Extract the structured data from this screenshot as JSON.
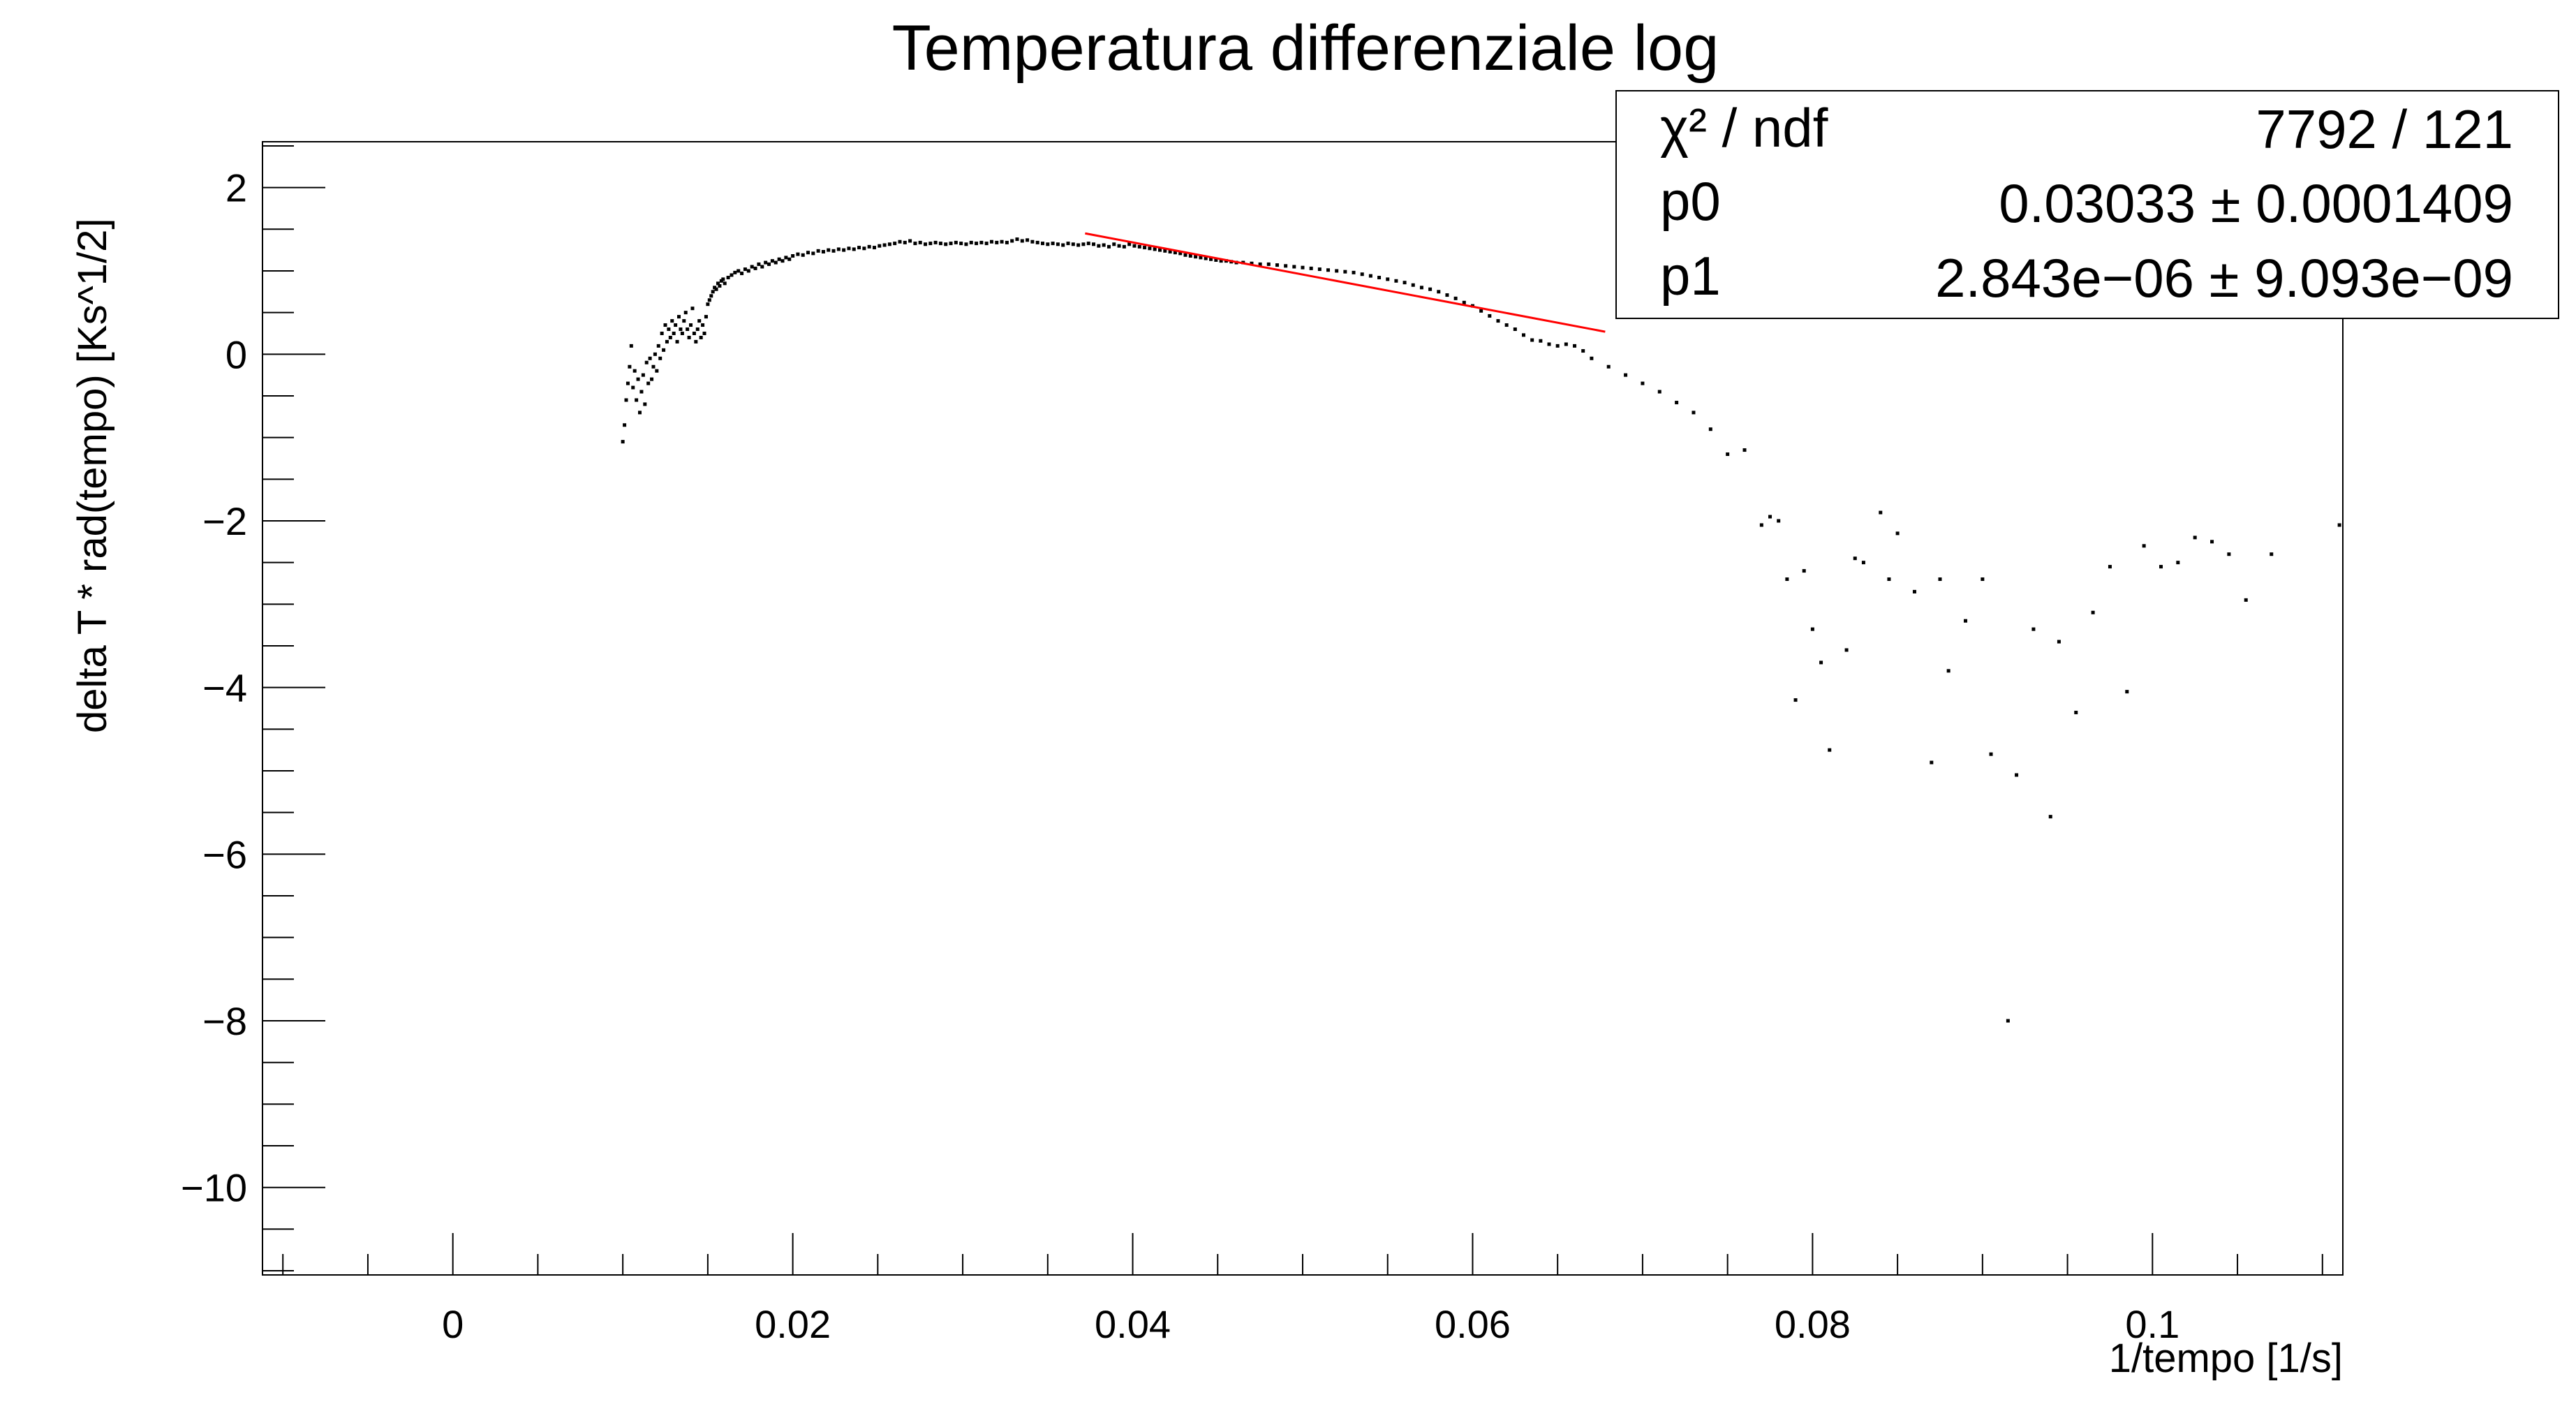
{
  "chart_data": {
    "type": "scatter",
    "title": "Temperatura differenziale log",
    "xlabel": "1/tempo [1/s]",
    "ylabel": "delta T * rad(tempo) [Ks^1/2]",
    "xlim": [
      -0.0112,
      0.1112
    ],
    "ylim": [
      -11.05,
      2.55
    ],
    "x_ticks": [
      0,
      0.02,
      0.04,
      0.06,
      0.08,
      0.1
    ],
    "x_tick_labels": [
      "0",
      "0.02",
      "0.04",
      "0.06",
      "0.08",
      "0.1"
    ],
    "y_ticks": [
      2,
      0,
      -2,
      -4,
      -6,
      -8,
      -10
    ],
    "y_tick_labels": [
      "2",
      "0",
      "−2",
      "−4",
      "−6",
      "−8",
      "−10"
    ],
    "grid": false,
    "series": [
      {
        "points": [
          [
            0.01,
            -1.05
          ],
          [
            0.0101,
            -0.85
          ],
          [
            0.0102,
            -0.55
          ],
          [
            0.0103,
            -0.35
          ],
          [
            0.0104,
            -0.15
          ],
          [
            0.0105,
            0.1
          ],
          [
            0.0106,
            -0.4
          ],
          [
            0.0107,
            -0.2
          ],
          [
            0.0108,
            -0.55
          ],
          [
            0.0109,
            -0.3
          ],
          [
            0.011,
            -0.7
          ],
          [
            0.0111,
            -0.45
          ],
          [
            0.0112,
            -0.25
          ],
          [
            0.0113,
            -0.6
          ],
          [
            0.0114,
            -0.1
          ],
          [
            0.0115,
            -0.35
          ],
          [
            0.0116,
            -0.05
          ],
          [
            0.0117,
            -0.3
          ],
          [
            0.0118,
            -0.15
          ],
          [
            0.0119,
            0.0
          ],
          [
            0.012,
            -0.2
          ],
          [
            0.0121,
            0.1
          ],
          [
            0.0122,
            -0.05
          ],
          [
            0.0123,
            0.25
          ],
          [
            0.0124,
            0.05
          ],
          [
            0.0125,
            0.35
          ],
          [
            0.0126,
            0.15
          ],
          [
            0.0127,
            0.3
          ],
          [
            0.0128,
            0.2
          ],
          [
            0.0129,
            0.4
          ],
          [
            0.013,
            0.25
          ],
          [
            0.0131,
            0.35
          ],
          [
            0.0132,
            0.15
          ],
          [
            0.0133,
            0.45
          ],
          [
            0.0134,
            0.3
          ],
          [
            0.0135,
            0.25
          ],
          [
            0.0136,
            0.4
          ],
          [
            0.0137,
            0.5
          ],
          [
            0.0138,
            0.3
          ],
          [
            0.0139,
            0.2
          ],
          [
            0.014,
            0.35
          ],
          [
            0.0141,
            0.55
          ],
          [
            0.0142,
            0.25
          ],
          [
            0.0143,
            0.15
          ],
          [
            0.0144,
            0.3
          ],
          [
            0.0145,
            0.4
          ],
          [
            0.0146,
            0.2
          ],
          [
            0.0147,
            0.35
          ],
          [
            0.0148,
            0.25
          ],
          [
            0.0149,
            0.45
          ],
          [
            0.015,
            0.6
          ],
          [
            0.0151,
            0.65
          ],
          [
            0.0152,
            0.7
          ],
          [
            0.0153,
            0.75
          ],
          [
            0.0154,
            0.8
          ],
          [
            0.0155,
            0.78
          ],
          [
            0.0156,
            0.85
          ],
          [
            0.0157,
            0.82
          ],
          [
            0.0158,
            0.88
          ],
          [
            0.0159,
            0.9
          ],
          [
            0.016,
            0.85
          ],
          [
            0.0162,
            0.92
          ],
          [
            0.0164,
            0.95
          ],
          [
            0.0166,
            0.98
          ],
          [
            0.0168,
            1.0
          ],
          [
            0.017,
            0.97
          ],
          [
            0.0172,
            1.02
          ],
          [
            0.0174,
            1.0
          ],
          [
            0.0176,
            1.05
          ],
          [
            0.0178,
            1.03
          ],
          [
            0.018,
            1.08
          ],
          [
            0.0182,
            1.05
          ],
          [
            0.0184,
            1.1
          ],
          [
            0.0186,
            1.08
          ],
          [
            0.0188,
            1.12
          ],
          [
            0.019,
            1.1
          ],
          [
            0.0192,
            1.14
          ],
          [
            0.0194,
            1.12
          ],
          [
            0.0196,
            1.16
          ],
          [
            0.0198,
            1.14
          ],
          [
            0.02,
            1.18
          ],
          [
            0.0203,
            1.2
          ],
          [
            0.0206,
            1.19
          ],
          [
            0.0209,
            1.22
          ],
          [
            0.0212,
            1.21
          ],
          [
            0.0215,
            1.24
          ],
          [
            0.0218,
            1.23
          ],
          [
            0.0221,
            1.25
          ],
          [
            0.0224,
            1.24
          ],
          [
            0.0227,
            1.26
          ],
          [
            0.023,
            1.25
          ],
          [
            0.0233,
            1.27
          ],
          [
            0.0236,
            1.26
          ],
          [
            0.0239,
            1.28
          ],
          [
            0.0242,
            1.27
          ],
          [
            0.0245,
            1.29
          ],
          [
            0.0248,
            1.28
          ],
          [
            0.0251,
            1.3
          ],
          [
            0.0254,
            1.31
          ],
          [
            0.0257,
            1.32
          ],
          [
            0.026,
            1.33
          ],
          [
            0.0263,
            1.35
          ],
          [
            0.0266,
            1.34
          ],
          [
            0.0269,
            1.36
          ],
          [
            0.0272,
            1.33
          ],
          [
            0.0275,
            1.34
          ],
          [
            0.0278,
            1.32
          ],
          [
            0.0281,
            1.33
          ],
          [
            0.0284,
            1.34
          ],
          [
            0.0287,
            1.33
          ],
          [
            0.029,
            1.32
          ],
          [
            0.0293,
            1.33
          ],
          [
            0.0296,
            1.34
          ],
          [
            0.0299,
            1.33
          ],
          [
            0.0302,
            1.32
          ],
          [
            0.0305,
            1.34
          ],
          [
            0.0308,
            1.33
          ],
          [
            0.0311,
            1.34
          ],
          [
            0.0314,
            1.33
          ],
          [
            0.0317,
            1.35
          ],
          [
            0.032,
            1.34
          ],
          [
            0.0323,
            1.35
          ],
          [
            0.0326,
            1.34
          ],
          [
            0.0329,
            1.36
          ],
          [
            0.0332,
            1.38
          ],
          [
            0.0335,
            1.36
          ],
          [
            0.0338,
            1.37
          ],
          [
            0.0341,
            1.35
          ],
          [
            0.0344,
            1.34
          ],
          [
            0.0347,
            1.33
          ],
          [
            0.035,
            1.32
          ],
          [
            0.0353,
            1.33
          ],
          [
            0.0356,
            1.32
          ],
          [
            0.0359,
            1.31
          ],
          [
            0.0362,
            1.33
          ],
          [
            0.0365,
            1.32
          ],
          [
            0.0368,
            1.31
          ],
          [
            0.0371,
            1.32
          ],
          [
            0.0374,
            1.33
          ],
          [
            0.0377,
            1.32
          ],
          [
            0.038,
            1.3
          ],
          [
            0.0383,
            1.31
          ],
          [
            0.0386,
            1.29
          ],
          [
            0.0389,
            1.32
          ],
          [
            0.0392,
            1.3
          ],
          [
            0.0395,
            1.29
          ],
          [
            0.0398,
            1.32
          ],
          [
            0.0401,
            1.3
          ],
          [
            0.0404,
            1.29
          ],
          [
            0.0407,
            1.28
          ],
          [
            0.041,
            1.27
          ],
          [
            0.0413,
            1.26
          ],
          [
            0.0416,
            1.25
          ],
          [
            0.0419,
            1.24
          ],
          [
            0.0422,
            1.23
          ],
          [
            0.0425,
            1.22
          ],
          [
            0.0428,
            1.21
          ],
          [
            0.0431,
            1.19
          ],
          [
            0.0434,
            1.18
          ],
          [
            0.0437,
            1.17
          ],
          [
            0.044,
            1.16
          ],
          [
            0.0443,
            1.15
          ],
          [
            0.0446,
            1.14
          ],
          [
            0.0449,
            1.13
          ],
          [
            0.0452,
            1.12
          ],
          [
            0.0455,
            1.12
          ],
          [
            0.0458,
            1.11
          ],
          [
            0.0461,
            1.1
          ],
          [
            0.0465,
            1.1
          ],
          [
            0.047,
            1.09
          ],
          [
            0.0475,
            1.08
          ],
          [
            0.048,
            1.08
          ],
          [
            0.0485,
            1.07
          ],
          [
            0.049,
            1.06
          ],
          [
            0.0495,
            1.05
          ],
          [
            0.05,
            1.04
          ],
          [
            0.0505,
            1.03
          ],
          [
            0.051,
            1.02
          ],
          [
            0.0515,
            1.01
          ],
          [
            0.052,
            1.0
          ],
          [
            0.0525,
            0.99
          ],
          [
            0.053,
            0.98
          ],
          [
            0.0535,
            0.96
          ],
          [
            0.054,
            0.94
          ],
          [
            0.0545,
            0.92
          ],
          [
            0.055,
            0.9
          ],
          [
            0.0555,
            0.88
          ],
          [
            0.056,
            0.86
          ],
          [
            0.0565,
            0.83
          ],
          [
            0.057,
            0.8
          ],
          [
            0.0575,
            0.78
          ],
          [
            0.058,
            0.75
          ],
          [
            0.0585,
            0.71
          ],
          [
            0.059,
            0.67
          ],
          [
            0.0595,
            0.62
          ],
          [
            0.06,
            0.58
          ],
          [
            0.0605,
            0.52
          ],
          [
            0.061,
            0.46
          ],
          [
            0.0615,
            0.4
          ],
          [
            0.062,
            0.35
          ],
          [
            0.0625,
            0.3
          ],
          [
            0.063,
            0.23
          ],
          [
            0.0635,
            0.17
          ],
          [
            0.064,
            0.16
          ],
          [
            0.0645,
            0.12
          ],
          [
            0.065,
            0.1
          ],
          [
            0.0655,
            0.12
          ],
          [
            0.066,
            0.1
          ],
          [
            0.0665,
            0.04
          ],
          [
            0.067,
            -0.05
          ],
          [
            0.068,
            -0.15
          ],
          [
            0.069,
            -0.25
          ],
          [
            0.07,
            -0.35
          ],
          [
            0.071,
            -0.45
          ],
          [
            0.072,
            -0.58
          ],
          [
            0.073,
            -0.7
          ],
          [
            0.074,
            -0.9
          ],
          [
            0.075,
            -1.2
          ],
          [
            0.076,
            -1.15
          ],
          [
            0.077,
            -2.05
          ],
          [
            0.0775,
            -1.95
          ],
          [
            0.078,
            -2.0
          ],
          [
            0.0785,
            -2.7
          ],
          [
            0.079,
            -4.15
          ],
          [
            0.0795,
            -2.6
          ],
          [
            0.08,
            -3.3
          ],
          [
            0.0805,
            -3.7
          ],
          [
            0.081,
            -4.75
          ],
          [
            0.082,
            -3.55
          ],
          [
            0.0825,
            -2.45
          ],
          [
            0.083,
            -2.5
          ],
          [
            0.084,
            -1.9
          ],
          [
            0.0845,
            -2.7
          ],
          [
            0.085,
            -2.15
          ],
          [
            0.086,
            -2.85
          ],
          [
            0.087,
            -4.9
          ],
          [
            0.0875,
            -2.7
          ],
          [
            0.088,
            -3.8
          ],
          [
            0.089,
            -3.2
          ],
          [
            0.09,
            -2.7
          ],
          [
            0.0905,
            -4.8
          ],
          [
            0.0915,
            -8.0
          ],
          [
            0.092,
            -5.05
          ],
          [
            0.093,
            -3.3
          ],
          [
            0.094,
            -5.55
          ],
          [
            0.0945,
            -3.45
          ],
          [
            0.0955,
            -4.3
          ],
          [
            0.0965,
            -3.1
          ],
          [
            0.0975,
            -2.55
          ],
          [
            0.0985,
            -4.05
          ],
          [
            0.0995,
            -2.3
          ],
          [
            0.1005,
            -2.55
          ],
          [
            0.1015,
            -2.5
          ],
          [
            0.1025,
            -2.2
          ],
          [
            0.1035,
            -2.25
          ],
          [
            0.1045,
            -2.4
          ],
          [
            0.1055,
            -2.95
          ],
          [
            0.107,
            -2.4
          ],
          [
            0.111,
            -2.05
          ]
        ]
      }
    ],
    "fit": {
      "color": "#ff0000",
      "x_range": [
        0.0372,
        0.0678
      ],
      "y_start": 1.45,
      "y_end": 0.27
    },
    "stats_box": {
      "rows": [
        {
          "label": "χ² / ndf",
          "value": "7792 / 121"
        },
        {
          "label": "p0",
          "value": "0.03033 ± 0.0001409"
        },
        {
          "label": "p1",
          "value": "2.843e−06 ± 9.093e−09"
        }
      ]
    }
  }
}
